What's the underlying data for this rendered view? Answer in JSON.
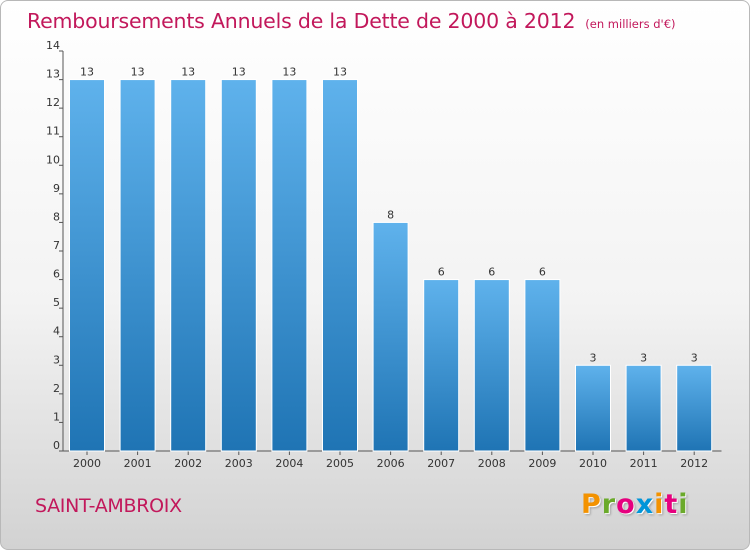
{
  "title": "Remboursements Annuels de la Dette de 2000 à 2012",
  "subtitle": "(en milliers d'€)",
  "place_name": "SAINT-AMBROIX",
  "brand": {
    "letters": [
      "P",
      "r",
      "o",
      "x",
      "i",
      "t",
      "i"
    ],
    "colors": [
      "#f39200",
      "#6aaa2a",
      "#e6007e",
      "#0095d9",
      "#f39200",
      "#e6007e",
      "#6aaa2a"
    ]
  },
  "colors": {
    "bar_top": "#5fb2ec",
    "bar_bottom": "#1f74b4",
    "title": "#c2185b"
  },
  "chart_data": {
    "type": "bar",
    "title": "Remboursements Annuels de la Dette de 2000 à 2012",
    "categories": [
      "2000",
      "2001",
      "2002",
      "2003",
      "2004",
      "2005",
      "2006",
      "2007",
      "2008",
      "2009",
      "2010",
      "2011",
      "2012"
    ],
    "values": [
      13,
      13,
      13,
      13,
      13,
      13,
      8,
      6,
      6,
      6,
      3,
      3,
      3
    ],
    "value_labels": [
      "13",
      "13",
      "13",
      "13",
      "13",
      "13",
      "8",
      "6",
      "6",
      "6",
      "3",
      "3",
      "3"
    ],
    "yticks": [
      "0",
      "1",
      "2",
      "3",
      "4",
      "5",
      "6",
      "7",
      "8",
      "9",
      "10",
      "11",
      "12",
      "13",
      "14"
    ],
    "ylim": [
      0,
      14
    ],
    "xlabel": "",
    "ylabel": "",
    "grid": false,
    "legend": "none"
  }
}
